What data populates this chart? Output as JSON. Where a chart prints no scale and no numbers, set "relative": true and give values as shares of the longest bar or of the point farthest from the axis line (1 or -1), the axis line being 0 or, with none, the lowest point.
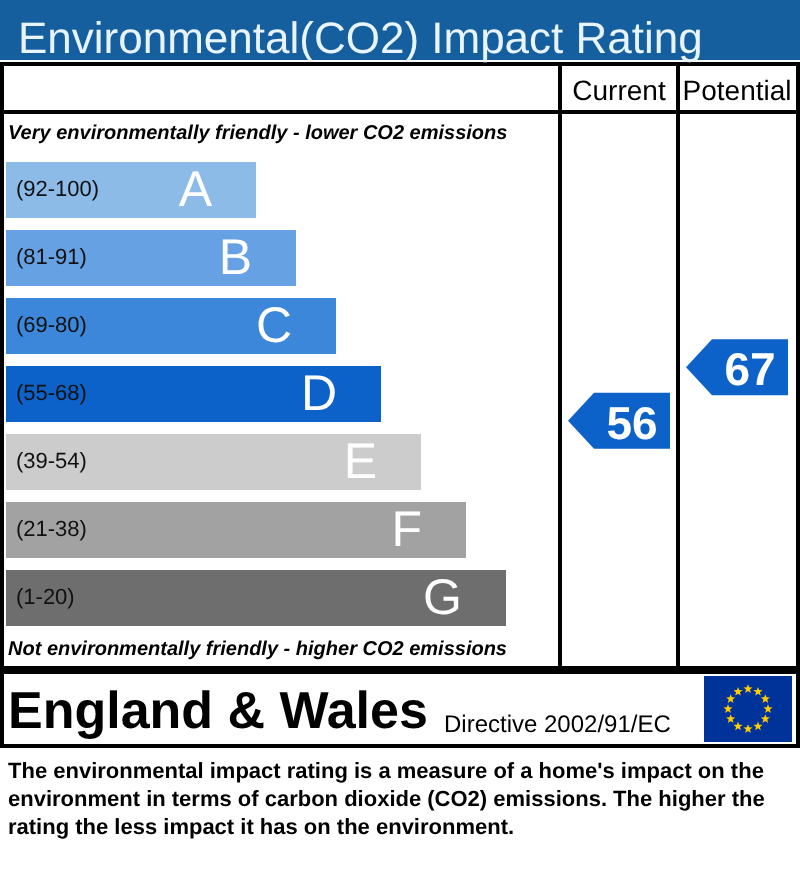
{
  "chart_data": {
    "type": "bar",
    "orientation": "horizontal",
    "relative": true,
    "title": "Environmental(CO2) Impact Rating",
    "categories": [
      "A",
      "B",
      "C",
      "D",
      "E",
      "F",
      "G"
    ],
    "values": [
      0.5,
      0.58,
      0.66,
      0.75,
      0.83,
      0.92,
      1
    ],
    "colors": [
      "#8dbbe8",
      "#65a1e3",
      "#3c87d9",
      "#0c62c8",
      "#cccccc",
      "#a2a2a2",
      "#6e6e6e"
    ],
    "annotations": [
      "Very environmentally friendly - lower CO2 emissions",
      "(92-100)",
      "(81-91)",
      "(69-80)",
      "(55-68)",
      "(39-54)",
      "(21-38)",
      "(1-20)",
      "Not environmentally friendly - higher CO2 emissions",
      "Current",
      "56",
      "Potential",
      "67",
      "England & Wales",
      "Directive 2002/91/EC",
      "The environmental impact rating is a measure of a home's impact on the environment in terms of carbon dioxide (CO2) emissions. The higher the rating the less impact it has on the environment."
    ]
  }
}
